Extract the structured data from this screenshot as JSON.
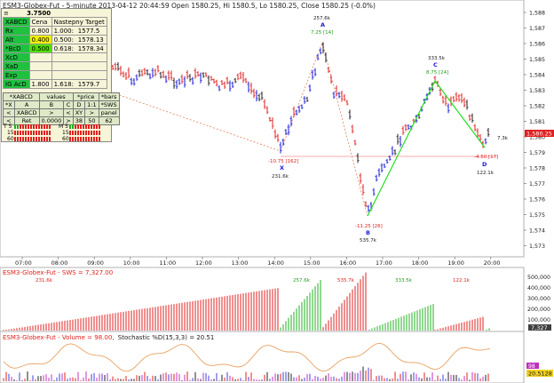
{
  "header": {
    "title": "ESM3-Globex-Fut - 5-minute 2013-04-12 20:44:59 Open 1580.25, Hi 1580.5, Lo 1580.25, Close 1580.25 (-0.0%)"
  },
  "colors": {
    "up": "#1a1ad8",
    "down": "#e02020",
    "neutral": "#202020",
    "pattern": "#20e020",
    "projection": "#e08060",
    "accent": "#e02020"
  },
  "xabcd_panel": {
    "ratio_value": "3.7500",
    "headers": [
      "XABCD",
      "Cena",
      "Nastepny Target"
    ],
    "rows": [
      {
        "label": "Rx",
        "cena": "0.800",
        "ratio": "1.000:",
        "target": "1577.5"
      },
      {
        "label": "Alt",
        "cena": "0.400",
        "ratio": "0.500:",
        "target": "1578.13"
      },
      {
        "label": "*BcD",
        "cena": "0.500",
        "ratio": "0.618:",
        "target": "1578.34"
      },
      {
        "label": "XcD",
        "cena": "",
        "ratio": "",
        "target": ""
      },
      {
        "label": "XaD",
        "cena": "",
        "ratio": "",
        "target": ""
      },
      {
        "label": "Exp",
        "cena": "",
        "ratio": "",
        "target": ""
      },
      {
        "label": "IG AcD",
        "cena": "1.800",
        "ratio": "1.618:",
        "target": "1579.7"
      }
    ],
    "buttons": {
      "row1": [
        "*XABCD",
        "values",
        "*price",
        "*bars"
      ],
      "row2": [
        "*X",
        "A",
        "B",
        "C",
        "D",
        "1:1",
        "*SWS"
      ],
      "row3": [
        "<",
        "XABCD",
        ">",
        "<",
        "XY",
        ">",
        "panel"
      ],
      "row4": [
        "<",
        "Ret",
        "0.0000",
        ">",
        "38",
        "50",
        "62"
      ]
    },
    "timeframes": [
      {
        "label": "T 5",
        "col2": "M 5"
      },
      {
        "label": "15",
        "col2": "15"
      },
      {
        "label": "60",
        "col2": "60"
      }
    ]
  },
  "time_axis": {
    "labels": [
      "07:00",
      "08:00",
      "09:00",
      "10:00",
      "11:00",
      "12:00",
      "13:00",
      "14:00",
      "15:00",
      "16:00",
      "17:00",
      "18:00",
      "19:00",
      "20:00"
    ]
  },
  "price_axis": {
    "ticks": [
      "1,588",
      "1,587",
      "1,586",
      "1,585",
      "1,584",
      "1,583",
      "1,582",
      "1,581",
      "1,580",
      "1,579",
      "1,578",
      "1,577",
      "1,576",
      "1,575",
      "1,574",
      "1,573"
    ],
    "current_price": "1,580.25"
  },
  "pattern_labels": {
    "X": {
      "name": "X",
      "above": "-10.75 [162]",
      "below": "231.6k"
    },
    "A": {
      "name": "A",
      "above": "257.6k",
      "below": "7.25 [14]"
    },
    "B": {
      "name": "B",
      "above": "-11.25 [26]",
      "below": "535.7k"
    },
    "C": {
      "name": "C",
      "above": "333.5k",
      "below": "8.75 [24]"
    },
    "D": {
      "name": "D",
      "above": "-4.50 [17]",
      "below": "122.1k"
    },
    "right_note": "7.3k"
  },
  "volume_panel": {
    "title": "ESM3-Globex-Fut - SWS = 7,327.00",
    "ticks": [
      "500,000",
      "400,000",
      "300,000",
      "200,000",
      "100,000"
    ],
    "current": "7,327",
    "annotations": [
      "231.6k",
      "257.6k",
      "535.7k",
      "333.5k",
      "122.1k"
    ]
  },
  "stoch_panel": {
    "title_main": "ESM3-Globex-Fut - Volume = 98.00,",
    "title_stoch": "Stochastic %D(15,3,3) = 20.51",
    "badge1": "98",
    "badge2": "20.5128"
  }
}
